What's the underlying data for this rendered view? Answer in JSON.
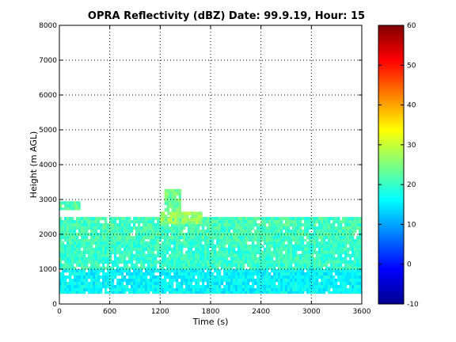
{
  "chart_data": {
    "type": "heatmap",
    "title": "OPRA Reflectivity (dBZ)  Date: 99.9.19, Hour: 15",
    "xlabel": "Time (s)",
    "ylabel": "Height (m AGL)",
    "xlim": [
      0,
      3600
    ],
    "ylim": [
      0,
      8000
    ],
    "xticks": [
      "0",
      "600",
      "1200",
      "1800",
      "2400",
      "3000",
      "3600"
    ],
    "yticks": [
      "0",
      "1000",
      "2000",
      "3000",
      "4000",
      "5000",
      "6000",
      "7000",
      "8000"
    ],
    "grid": true,
    "colormap": "jet",
    "colorbar": {
      "range": [
        -10,
        60
      ],
      "ticks": [
        "-10",
        "0",
        "10",
        "20",
        "30",
        "40",
        "50",
        "60"
      ]
    },
    "layers": [
      {
        "x": [
          0,
          3600
        ],
        "y": [
          300,
          1000
        ],
        "dbz": 16
      },
      {
        "x": [
          0,
          3600
        ],
        "y": [
          1000,
          1800
        ],
        "dbz": 20
      },
      {
        "x": [
          0,
          3600
        ],
        "y": [
          1800,
          2500
        ],
        "dbz": 21
      },
      {
        "x": [
          0,
          250
        ],
        "y": [
          2700,
          2950
        ],
        "dbz": 22
      },
      {
        "x": [
          1200,
          1700
        ],
        "y": [
          2300,
          2650
        ],
        "dbz": 27
      },
      {
        "x": [
          1250,
          1450
        ],
        "y": [
          2650,
          3300
        ],
        "dbz": 24
      }
    ]
  }
}
